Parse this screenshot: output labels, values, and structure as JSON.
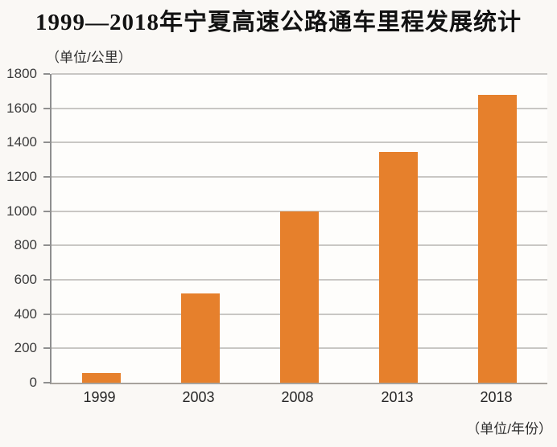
{
  "header": {
    "title": "1999—2018年宁夏高速公路通车里程发展统计"
  },
  "chart_data": {
    "type": "bar",
    "title": "1999—2018年宁夏高速公路通车里程发展统计",
    "y_unit_label": "（单位/公里）",
    "x_unit_label": "（单位/年份）",
    "categories": [
      "1999",
      "2003",
      "2008",
      "2013",
      "2018"
    ],
    "values": [
      55,
      520,
      1000,
      1345,
      1680
    ],
    "ylim": [
      0,
      1800
    ],
    "yticks": [
      0,
      200,
      400,
      600,
      800,
      1000,
      1200,
      1400,
      1600,
      1800
    ],
    "grid": true,
    "legend": false,
    "bar_color": "#E6802C",
    "gridline_color": "#c9c7c4",
    "axis_color": "#8f8f8f"
  }
}
